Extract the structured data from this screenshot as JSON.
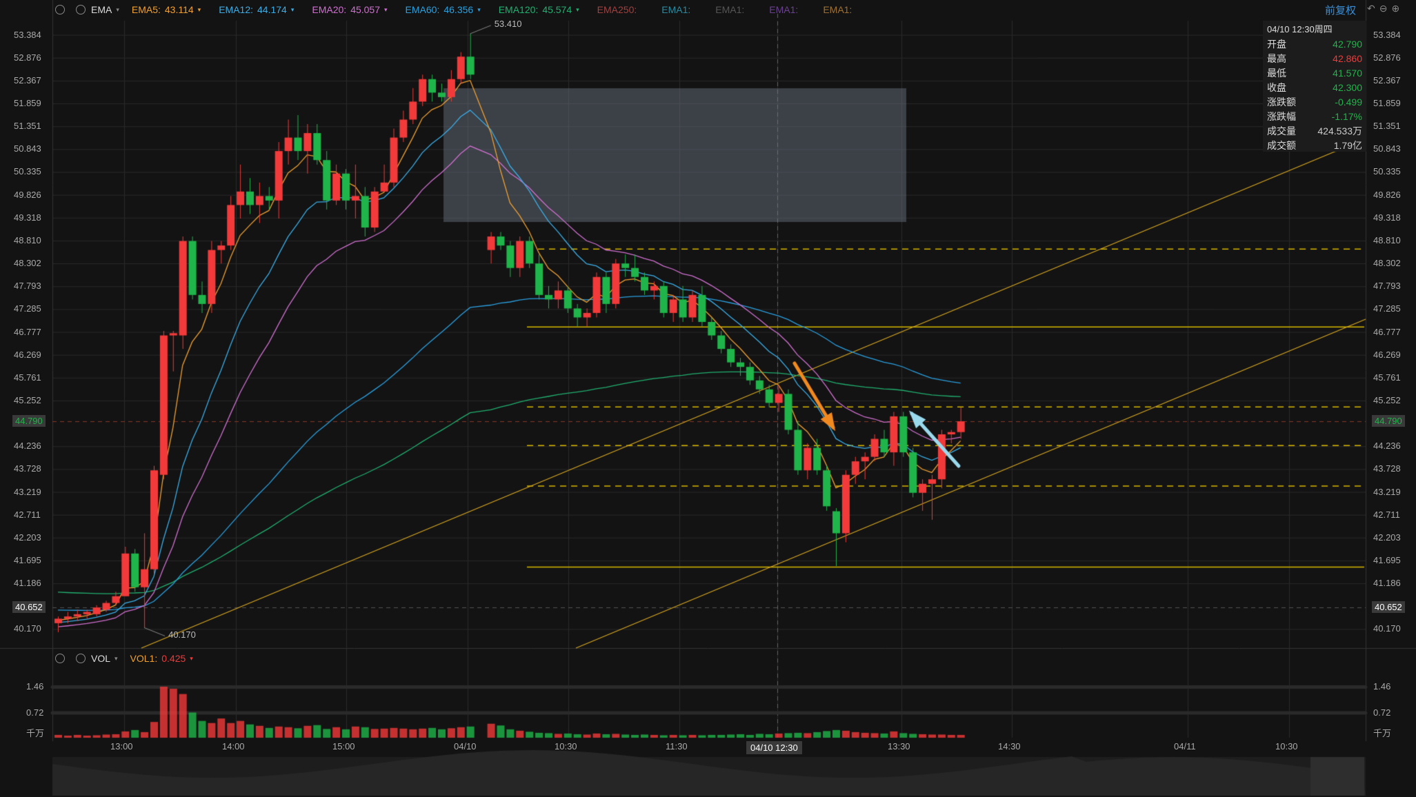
{
  "colors": {
    "bg": "#131313",
    "up": "#f23a3a",
    "down": "#1fb54a",
    "grid": "#2a2a2a",
    "ema5": "#f0a030",
    "ema12": "#3aaee8",
    "ema20": "#d070d0",
    "ema60": "#2aa0e0",
    "ema120": "#20b070",
    "trendline": "#d8a820",
    "ext_gold": "#d8b800"
  },
  "top_bar": {
    "indicator": "EMA",
    "items": [
      {
        "label": "EMA5:",
        "value": "43.114",
        "color": "#f0a030"
      },
      {
        "label": "EMA12:",
        "value": "44.174",
        "color": "#3aaee8"
      },
      {
        "label": "EMA20:",
        "value": "45.057",
        "color": "#d070d0"
      },
      {
        "label": "EMA60:",
        "value": "46.356",
        "color": "#2aa0e0"
      },
      {
        "label": "EMA120:",
        "value": "45.574",
        "color": "#20b070"
      }
    ],
    "dim_items": [
      {
        "label": "EMA250:",
        "color": "#a04040"
      },
      {
        "label": "EMA1:",
        "color": "#2a8aa0"
      },
      {
        "label": "EMA1:",
        "color": "#555"
      },
      {
        "label": "EMA1:",
        "color": "#6a4090"
      },
      {
        "label": "EMA1:",
        "color": "#a07030"
      }
    ],
    "right_link": "前复权"
  },
  "info_panel": {
    "datetime": "04/10 12:30周四",
    "rows": [
      {
        "k": "开盘",
        "v": "42.790",
        "color": "#1fb54a"
      },
      {
        "k": "最高",
        "v": "42.860",
        "color": "#f23a3a"
      },
      {
        "k": "最低",
        "v": "41.570",
        "color": "#1fb54a"
      },
      {
        "k": "收盘",
        "v": "42.300",
        "color": "#1fb54a"
      },
      {
        "k": "涨跌额",
        "v": "-0.499",
        "color": "#1fb54a"
      },
      {
        "k": "涨跌幅",
        "v": "-1.17%",
        "color": "#1fb54a"
      },
      {
        "k": "成交量",
        "v": "424.533万",
        "color": "#ccc"
      },
      {
        "k": "成交额",
        "v": "1.79亿",
        "color": "#ccc"
      }
    ]
  },
  "price_axis": [
    "53.384",
    "52.876",
    "52.367",
    "51.859",
    "51.351",
    "50.843",
    "50.335",
    "49.826",
    "49.318",
    "48.810",
    "48.302",
    "47.793",
    "47.285",
    "46.777",
    "46.269",
    "45.761",
    "45.252",
    "44.790",
    "44.236",
    "43.728",
    "43.219",
    "42.711",
    "42.203",
    "41.695",
    "41.186",
    "40.652",
    "40.170"
  ],
  "highlight_tags": {
    "current": "44.790",
    "low_line": "40.652"
  },
  "annotations": {
    "high": "53.410",
    "low": "40.170"
  },
  "vol_bar": {
    "indicator": "VOL",
    "label": "VOL1:",
    "value": "0.425",
    "axis": [
      "1.46",
      "0.72",
      "千万"
    ]
  },
  "time_axis": [
    "13:00",
    "14:00",
    "15:00",
    "04/10",
    "10:30",
    "11:30",
    "04/10 12:30",
    "13:30",
    "14:30",
    "04/11",
    "10:30"
  ],
  "chart_data": {
    "type": "candlestick",
    "ylim": [
      39.9,
      53.7
    ],
    "ohlc": [
      [
        40.3,
        40.45,
        40.1,
        40.4
      ],
      [
        40.4,
        40.55,
        40.3,
        40.45
      ],
      [
        40.45,
        40.6,
        40.35,
        40.5
      ],
      [
        40.5,
        40.6,
        40.4,
        40.55
      ],
      [
        40.5,
        40.7,
        40.45,
        40.65
      ],
      [
        40.6,
        40.8,
        40.55,
        40.75
      ],
      [
        40.75,
        41.0,
        40.7,
        40.9
      ],
      [
        40.9,
        42.0,
        40.9,
        41.85
      ],
      [
        41.85,
        41.95,
        41.0,
        41.1
      ],
      [
        41.1,
        42.3,
        40.2,
        41.5
      ],
      [
        41.5,
        43.8,
        41.4,
        43.7
      ],
      [
        43.6,
        46.8,
        43.5,
        46.7
      ],
      [
        46.7,
        46.8,
        45.9,
        46.75
      ],
      [
        46.7,
        48.9,
        46.4,
        48.8
      ],
      [
        48.8,
        48.9,
        47.5,
        47.6
      ],
      [
        47.6,
        47.9,
        47.2,
        47.4
      ],
      [
        47.4,
        48.8,
        47.2,
        48.6
      ],
      [
        48.6,
        48.8,
        48.3,
        48.7
      ],
      [
        48.7,
        49.8,
        48.6,
        49.6
      ],
      [
        49.6,
        50.5,
        49.3,
        49.9
      ],
      [
        49.9,
        50.2,
        49.4,
        49.6
      ],
      [
        49.6,
        50.1,
        49.2,
        49.8
      ],
      [
        49.8,
        50.0,
        49.5,
        49.7
      ],
      [
        49.7,
        51.0,
        49.3,
        50.8
      ],
      [
        50.8,
        51.5,
        50.5,
        51.1
      ],
      [
        51.1,
        51.6,
        50.6,
        50.8
      ],
      [
        50.8,
        51.4,
        50.3,
        51.2
      ],
      [
        51.2,
        51.4,
        50.5,
        50.6
      ],
      [
        50.6,
        50.8,
        49.5,
        49.7
      ],
      [
        49.7,
        50.5,
        49.6,
        50.3
      ],
      [
        50.3,
        50.4,
        49.5,
        49.7
      ],
      [
        49.7,
        50.5,
        49.3,
        49.8
      ],
      [
        49.8,
        50.0,
        48.9,
        49.1
      ],
      [
        49.1,
        50.0,
        49.0,
        49.9
      ],
      [
        49.9,
        50.5,
        49.9,
        50.1
      ],
      [
        50.1,
        51.3,
        50.0,
        51.1
      ],
      [
        51.1,
        51.7,
        51.0,
        51.5
      ],
      [
        51.5,
        52.2,
        51.4,
        51.9
      ],
      [
        51.9,
        52.5,
        51.8,
        52.4
      ],
      [
        52.4,
        52.5,
        51.9,
        52.1
      ],
      [
        52.1,
        52.3,
        51.9,
        52.0
      ],
      [
        52.0,
        52.6,
        51.9,
        52.4
      ],
      [
        52.4,
        53.0,
        52.3,
        52.9
      ],
      [
        52.9,
        53.41,
        52.4,
        52.5
      ],
      [
        48.6,
        49.0,
        48.3,
        48.9
      ],
      [
        48.9,
        49.0,
        48.6,
        48.7
      ],
      [
        48.7,
        48.8,
        48.0,
        48.2
      ],
      [
        48.2,
        48.9,
        48.0,
        48.8
      ],
      [
        48.8,
        48.9,
        48.2,
        48.3
      ],
      [
        48.3,
        48.5,
        47.5,
        47.6
      ],
      [
        47.6,
        47.8,
        47.3,
        47.5
      ],
      [
        47.5,
        47.9,
        47.3,
        47.7
      ],
      [
        47.7,
        47.8,
        47.2,
        47.3
      ],
      [
        47.3,
        47.4,
        46.9,
        47.1
      ],
      [
        47.1,
        47.3,
        46.9,
        47.2
      ],
      [
        47.2,
        48.1,
        47.1,
        48.0
      ],
      [
        48.0,
        48.1,
        47.2,
        47.4
      ],
      [
        47.4,
        48.4,
        47.3,
        48.3
      ],
      [
        48.3,
        48.5,
        48.0,
        48.2
      ],
      [
        48.2,
        48.5,
        47.9,
        48.0
      ],
      [
        48.0,
        48.1,
        47.6,
        47.7
      ],
      [
        47.7,
        47.9,
        47.5,
        47.8
      ],
      [
        47.8,
        47.9,
        47.1,
        47.2
      ],
      [
        47.2,
        47.6,
        47.0,
        47.5
      ],
      [
        47.5,
        47.8,
        47.0,
        47.1
      ],
      [
        47.1,
        47.7,
        47.0,
        47.6
      ],
      [
        47.6,
        47.8,
        46.9,
        47.0
      ],
      [
        47.0,
        47.1,
        46.6,
        46.7
      ],
      [
        46.7,
        46.8,
        46.3,
        46.4
      ],
      [
        46.4,
        46.5,
        46.0,
        46.1
      ],
      [
        46.1,
        46.2,
        45.8,
        46.0
      ],
      [
        46.0,
        46.1,
        45.6,
        45.7
      ],
      [
        45.7,
        45.8,
        45.4,
        45.5
      ],
      [
        45.5,
        45.6,
        45.1,
        45.2
      ],
      [
        45.2,
        45.6,
        45.0,
        45.4
      ],
      [
        45.4,
        45.5,
        44.5,
        44.6
      ],
      [
        44.6,
        44.8,
        43.6,
        43.7
      ],
      [
        43.7,
        44.3,
        43.5,
        44.2
      ],
      [
        44.2,
        44.4,
        43.6,
        43.7
      ],
      [
        43.7,
        43.8,
        42.8,
        42.9
      ],
      [
        42.79,
        42.86,
        41.57,
        42.3
      ],
      [
        42.3,
        43.7,
        42.1,
        43.6
      ],
      [
        43.6,
        44.0,
        43.4,
        43.9
      ],
      [
        43.9,
        44.1,
        43.5,
        44.0
      ],
      [
        44.0,
        44.5,
        43.9,
        44.4
      ],
      [
        44.4,
        44.6,
        44.0,
        44.1
      ],
      [
        44.1,
        45.0,
        43.8,
        44.9
      ],
      [
        44.9,
        45.0,
        44.0,
        44.1
      ],
      [
        44.1,
        44.2,
        43.1,
        43.2
      ],
      [
        43.2,
        43.5,
        42.8,
        43.4
      ],
      [
        43.4,
        43.6,
        42.6,
        43.5
      ],
      [
        43.5,
        44.6,
        43.3,
        44.5
      ],
      [
        44.5,
        44.6,
        44.3,
        44.55
      ],
      [
        44.55,
        45.1,
        44.4,
        44.79
      ]
    ],
    "volume": [
      0.08,
      0.06,
      0.08,
      0.06,
      0.07,
      0.09,
      0.1,
      0.18,
      0.22,
      0.16,
      0.45,
      1.46,
      1.4,
      1.25,
      0.72,
      0.48,
      0.42,
      0.55,
      0.42,
      0.48,
      0.38,
      0.34,
      0.28,
      0.32,
      0.3,
      0.27,
      0.34,
      0.36,
      0.25,
      0.3,
      0.24,
      0.32,
      0.3,
      0.25,
      0.26,
      0.28,
      0.26,
      0.24,
      0.26,
      0.28,
      0.24,
      0.27,
      0.3,
      0.32,
      0.4,
      0.35,
      0.24,
      0.2,
      0.17,
      0.14,
      0.13,
      0.11,
      0.12,
      0.1,
      0.09,
      0.12,
      0.1,
      0.11,
      0.09,
      0.08,
      0.09,
      0.08,
      0.07,
      0.08,
      0.07,
      0.08,
      0.07,
      0.08,
      0.08,
      0.09,
      0.1,
      0.08,
      0.11,
      0.1,
      0.12,
      0.13,
      0.14,
      0.13,
      0.16,
      0.19,
      0.22,
      0.2,
      0.16,
      0.14,
      0.13,
      0.12,
      0.18,
      0.13,
      0.11,
      0.1,
      0.09,
      0.09,
      0.08,
      0.08
    ]
  }
}
